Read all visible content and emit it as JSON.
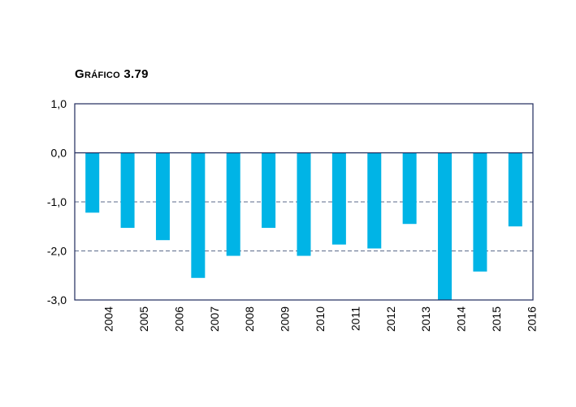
{
  "title": "Gráfico 3.79",
  "chart_data": {
    "type": "bar",
    "categories": [
      "2004",
      "2005",
      "2006",
      "2007",
      "2008",
      "2009",
      "2010",
      "2011",
      "2012",
      "2013",
      "2014",
      "2015",
      "2016"
    ],
    "values": [
      -1.22,
      -1.53,
      -1.78,
      -2.55,
      -2.1,
      -1.53,
      -2.1,
      -1.87,
      -1.95,
      -1.45,
      -3.2,
      -2.42,
      -1.5
    ],
    "ylim": [
      -3.0,
      1.0
    ],
    "yticks": [
      1.0,
      0.0,
      -1.0,
      -2.0,
      -3.0
    ],
    "ytick_labels": [
      "1,0",
      "0,0",
      "-1,0",
      "-2,0",
      "-3,0"
    ],
    "gridlines": [
      -1.0,
      -2.0
    ],
    "bar_color": "#00b4e6",
    "frame_color": "#1f2a5c",
    "grid_color": "#5a6a8a"
  }
}
